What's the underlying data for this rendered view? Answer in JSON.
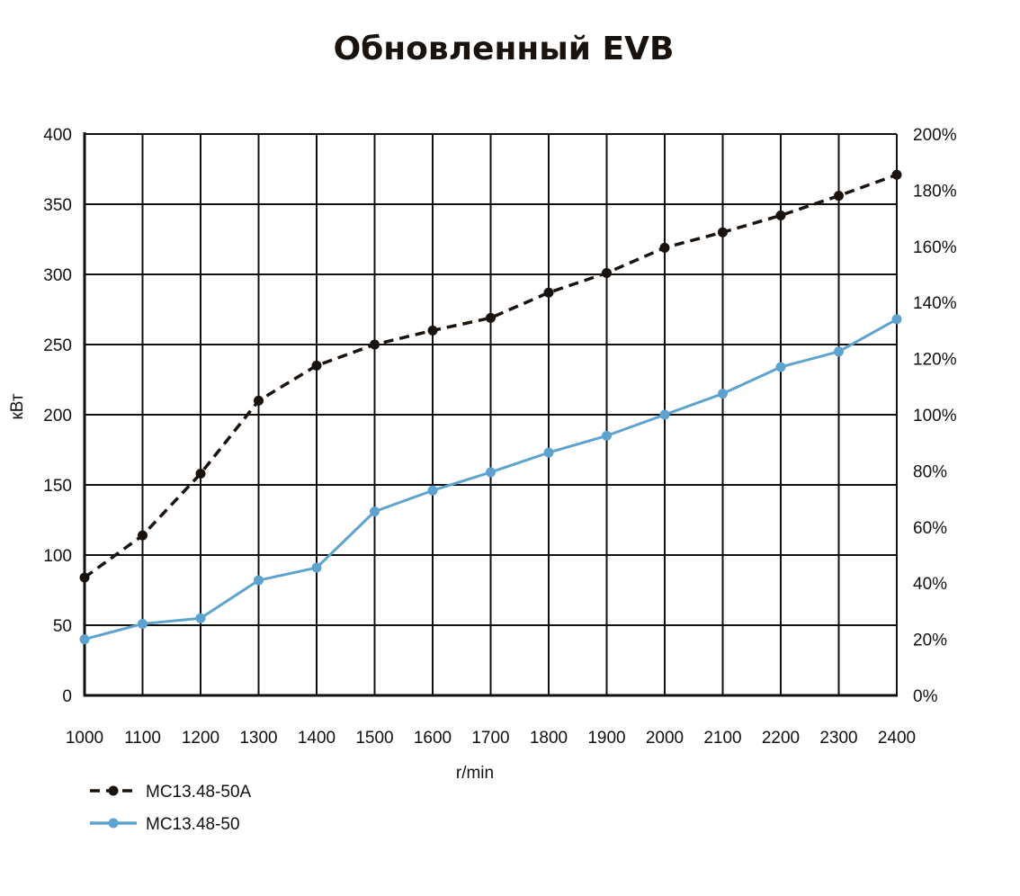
{
  "chart_data": {
    "type": "line",
    "title": "Обновленный EVB",
    "xlabel": "r/min",
    "ylabel": "кВт",
    "x": [
      1000,
      1100,
      1200,
      1300,
      1400,
      1500,
      1600,
      1700,
      1800,
      1900,
      2000,
      2100,
      2200,
      2300,
      2400
    ],
    "ylim": [
      0,
      400
    ],
    "y_ticks": [
      0,
      50,
      100,
      150,
      200,
      250,
      300,
      350,
      400
    ],
    "y2_ticks": [
      "0%",
      "20%",
      "40%",
      "60%",
      "80%",
      "100%",
      "120%",
      "140%",
      "160%",
      "180%",
      "200%"
    ],
    "y2lim": [
      0,
      200
    ],
    "grid": true,
    "legend_position": "bottom-left",
    "series": [
      {
        "name": "MC13.48-50A",
        "color": "#1a120d",
        "dash": true,
        "values": [
          84,
          114,
          158,
          210,
          235,
          250,
          260,
          269,
          287,
          301,
          319,
          330,
          342,
          356,
          371
        ]
      },
      {
        "name": "MC13.48-50",
        "color": "#5ea2cf",
        "dash": false,
        "values": [
          40,
          51,
          55,
          82,
          91,
          131,
          146,
          159,
          173,
          185,
          200,
          215,
          234,
          245,
          268
        ]
      }
    ]
  }
}
